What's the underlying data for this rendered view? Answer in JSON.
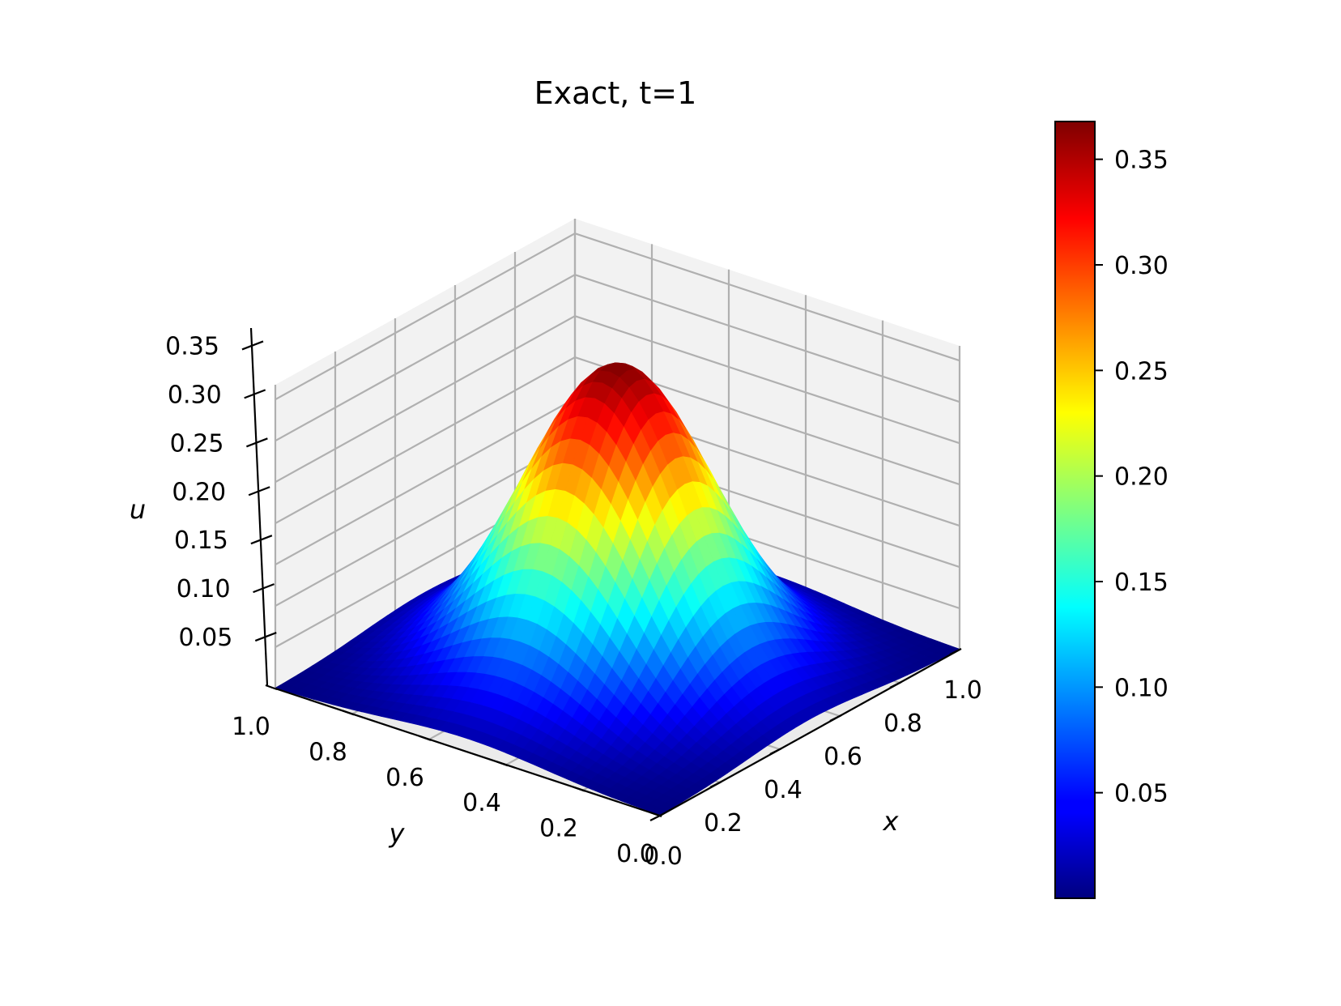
{
  "chart_data": {
    "type": "surface3d",
    "title": "Exact, t=1",
    "function": "u = exp(-1) * exp(-12.5*((x-0.5)^2 + (y-0.5)^2))",
    "x_range": [
      0,
      1
    ],
    "y_range": [
      0,
      1
    ],
    "xlabel": "x",
    "ylabel": "y",
    "zlabel": "u",
    "zlim": [
      0.0,
      0.3679
    ],
    "x_ticks": [
      "0.0",
      "0.2",
      "0.4",
      "0.6",
      "0.8",
      "1.0"
    ],
    "y_ticks": [
      "0.0",
      "0.2",
      "0.4",
      "0.6",
      "0.8",
      "1.0"
    ],
    "z_ticks": [
      "0.05",
      "0.10",
      "0.15",
      "0.20",
      "0.25",
      "0.30",
      "0.35"
    ],
    "colorbar": {
      "colormap": "jet",
      "range": [
        0.0,
        0.3679
      ],
      "ticks": [
        "0.05",
        "0.10",
        "0.15",
        "0.20",
        "0.25",
        "0.30",
        "0.35"
      ]
    },
    "grid": true,
    "peak": {
      "x": 0.5,
      "y": 0.5,
      "u": 0.3679
    }
  }
}
